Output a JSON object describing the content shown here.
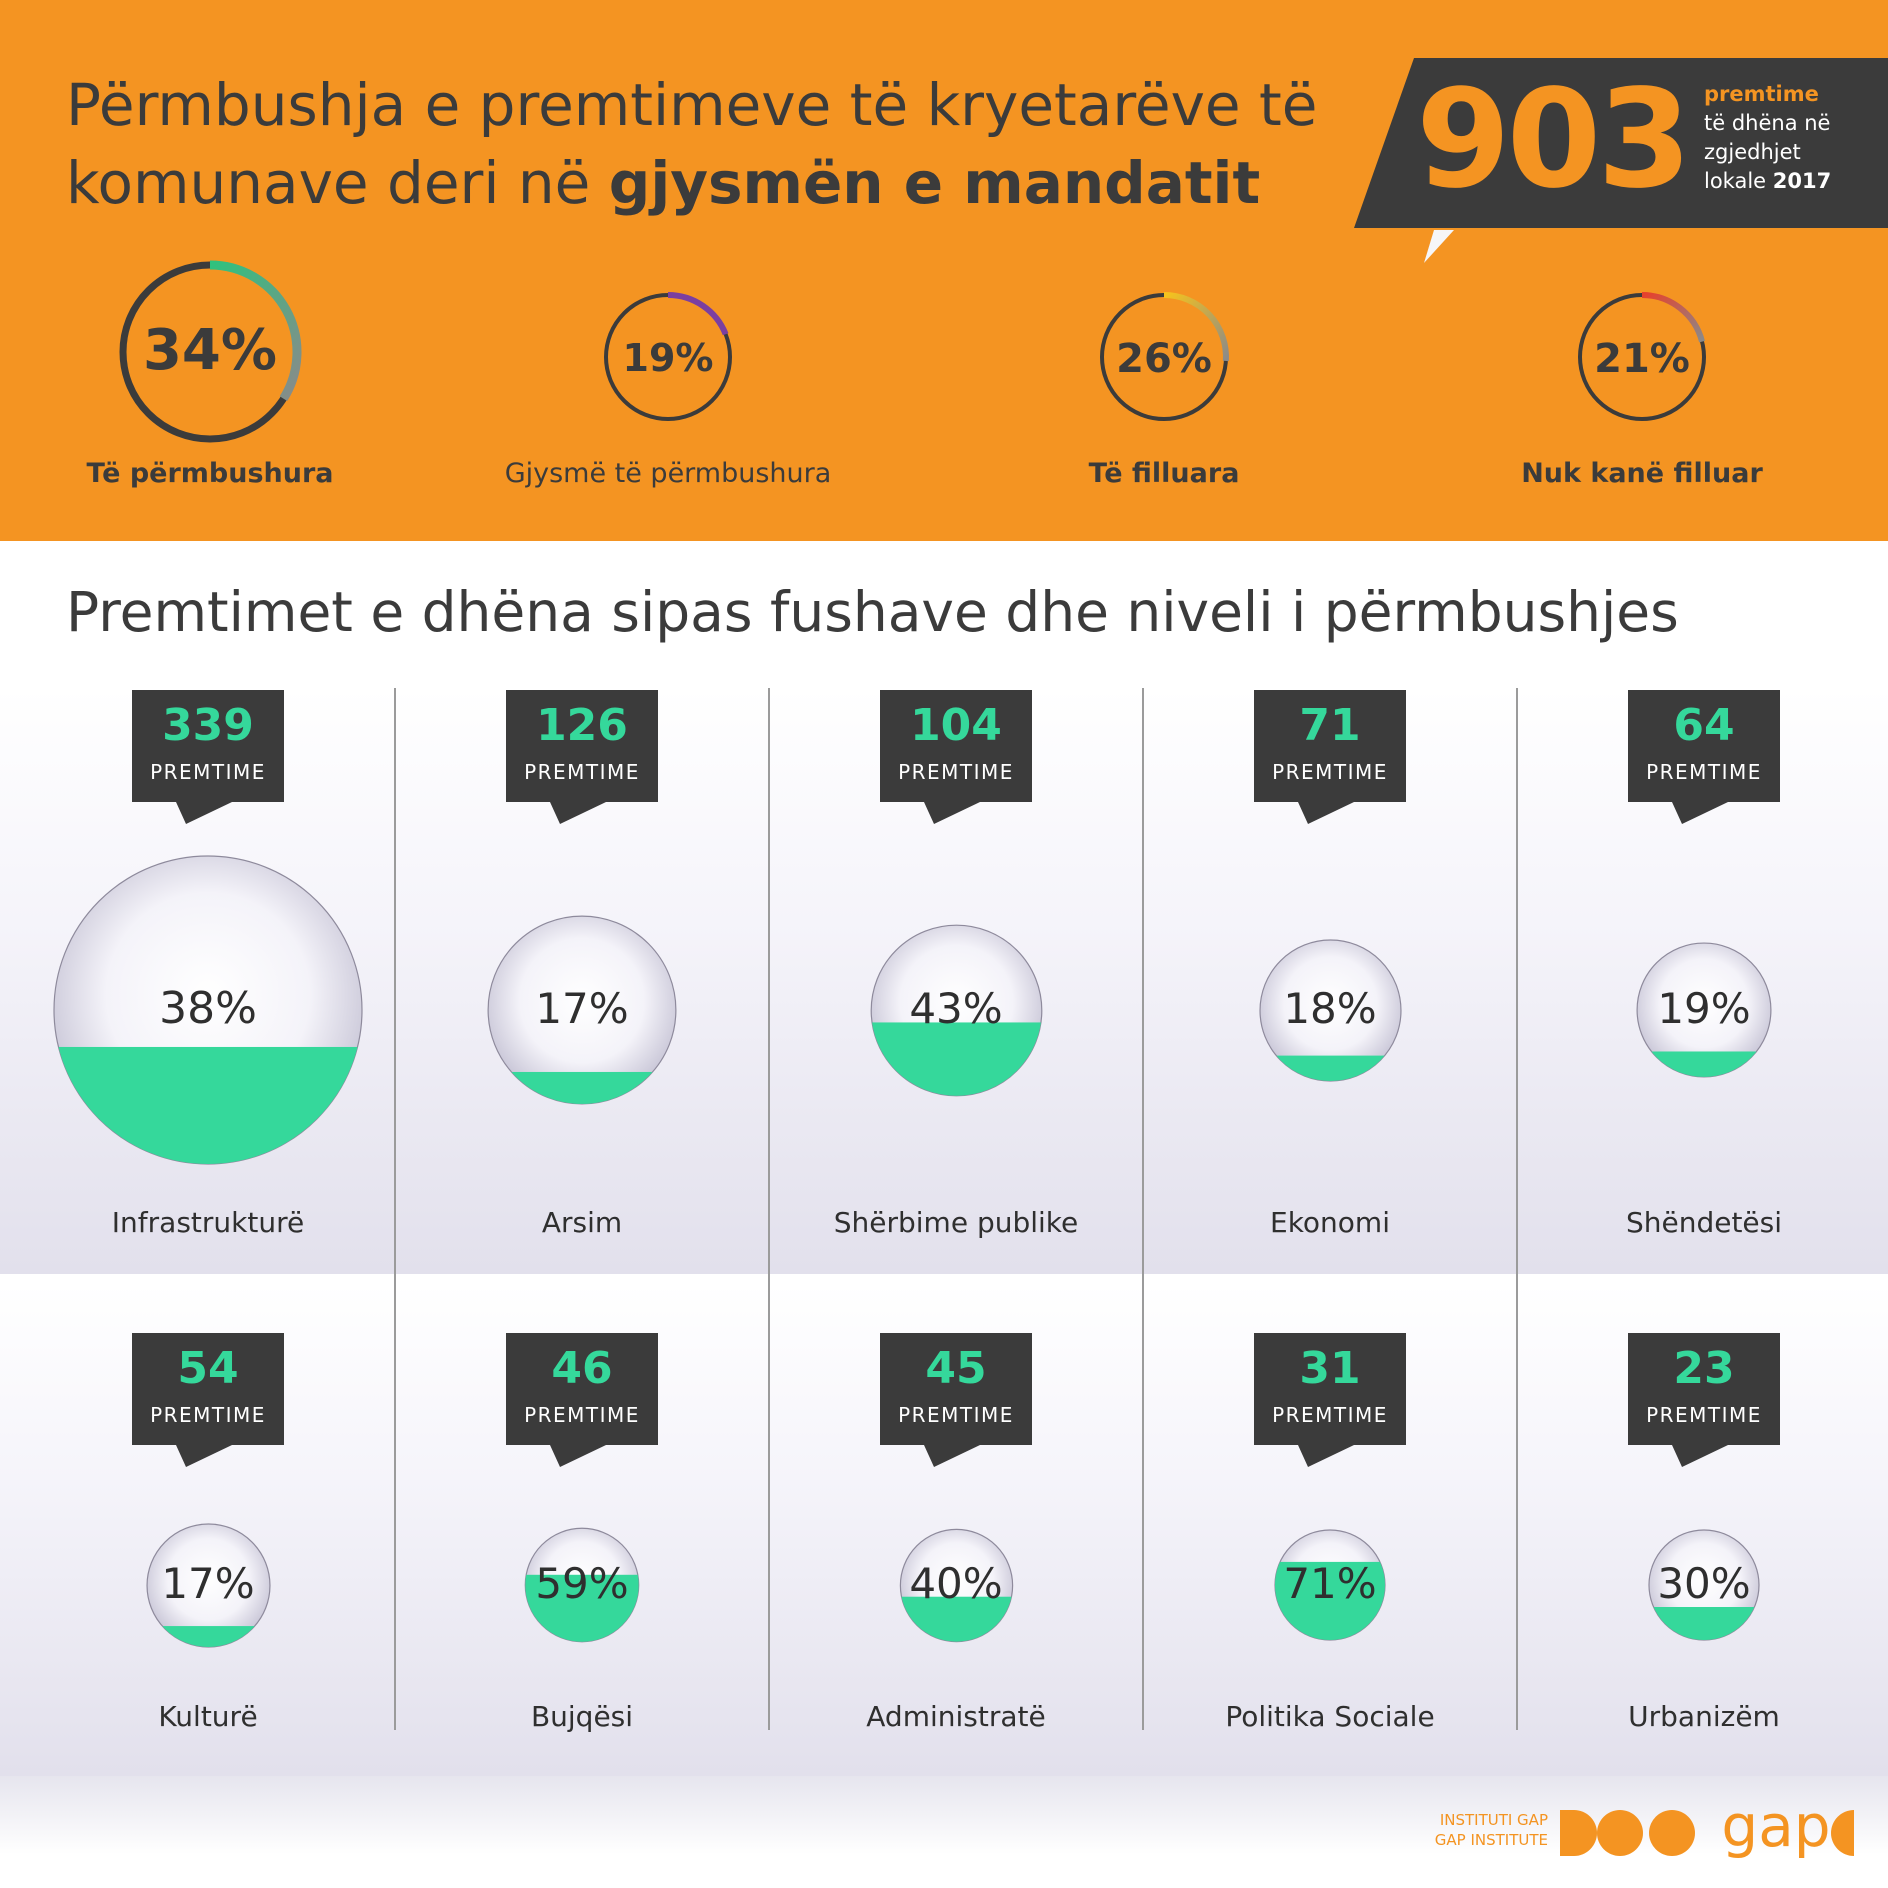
{
  "header": {
    "title_prefix": "Përmbushja e premtimeve të kryetarëve të komunave deri në",
    "title_bold": "gjysmën e mandatit",
    "total": {
      "number": "903",
      "label_highlight": "premtime",
      "label_line1": "të dhëna në",
      "label_line2": "zgjedhjet",
      "label_line3_prefix": "lokale",
      "label_year": "2017"
    }
  },
  "statuses": [
    {
      "value": "34%",
      "label": "Të përmbushura",
      "fraction": 0.34,
      "color": "#2ec27e",
      "color_end": "#8a8a8a"
    },
    {
      "value": "19%",
      "label": "Gjysmë të përmbushura",
      "fraction": 0.19,
      "color": "#7b3fa0",
      "color_end": "#7b3fa0"
    },
    {
      "value": "26%",
      "label": "Të filluara",
      "fraction": 0.26,
      "color": "#f7c31b",
      "color_end": "#8a8a8a"
    },
    {
      "value": "21%",
      "label": "Nuk kanë filluar",
      "fraction": 0.21,
      "color": "#e8402b",
      "color_end": "#8a8a8a"
    }
  ],
  "section_title": "Premtimet e dhëna sipas fushave dhe niveli i përmbushjes",
  "unit_label": "PREMTIME",
  "footer": {
    "org_sq": "INSTITUTI GAP",
    "org_en": "GAP INSTITUTE",
    "logo_word": "gap"
  },
  "colors": {
    "header_bg": "#f49422",
    "dark": "#3b3b3b",
    "accent": "#35d89b"
  },
  "chart_data": {
    "type": "bubble",
    "title": "Premtimet e dhëna sipas fushave dhe niveli i përmbushjes",
    "categories": [
      "Infrastrukturë",
      "Arsim",
      "Shërbime publike",
      "Ekonomi",
      "Shëndetësi",
      "Kulturë",
      "Bujqësi",
      "Administratë",
      "Politika Sociale",
      "Urbanizëm"
    ],
    "series": [
      {
        "name": "PREMTIME",
        "values": [
          339,
          126,
          104,
          71,
          64,
          54,
          46,
          45,
          31,
          23
        ]
      },
      {
        "values": [
          38,
          17,
          43,
          18,
          19,
          17,
          59,
          40,
          71,
          30
        ]
      }
    ],
    "value_labels": [
      "38%",
      "17%",
      "43%",
      "18%",
      "19%",
      "17%",
      "59%",
      "40%",
      "71%",
      "30%"
    ],
    "count_labels": [
      "339",
      "126",
      "104",
      "71",
      "64",
      "54",
      "46",
      "45",
      "31",
      "23"
    ]
  }
}
